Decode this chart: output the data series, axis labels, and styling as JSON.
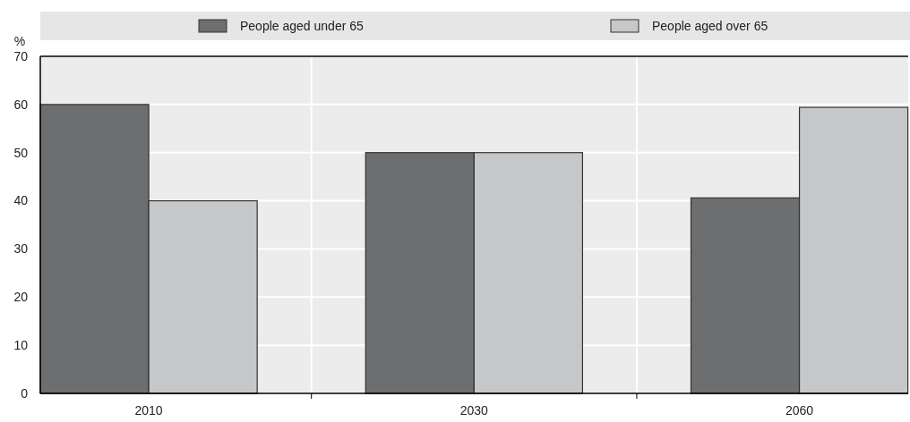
{
  "chart_data": {
    "type": "bar",
    "ylabel": "%",
    "categories": [
      "2010",
      "2030",
      "2060"
    ],
    "series": [
      {
        "name": "People aged under 65",
        "color": "#6d6e70",
        "values": [
          60,
          50,
          40.6
        ]
      },
      {
        "name": "People aged over 65",
        "color": "#c6c7c9",
        "values": [
          40,
          50,
          59.4
        ]
      }
    ],
    "ylim": [
      0,
      70
    ],
    "yticks": [
      0,
      10,
      20,
      30,
      40,
      50,
      60,
      70
    ],
    "grid": true,
    "legend": "top"
  }
}
